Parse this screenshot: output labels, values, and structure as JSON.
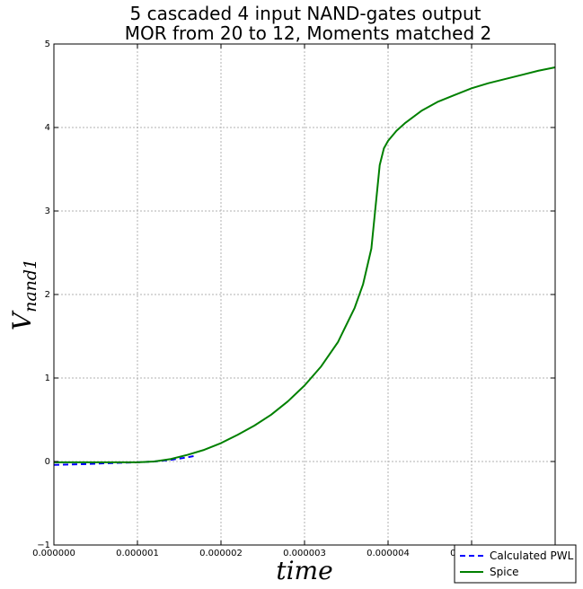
{
  "chart_data": {
    "type": "line",
    "title_lines": [
      "5 cascaded 4 input NAND-gates     output",
      "MOR from 20 to 12, Moments matched 2"
    ],
    "xlabel": "time",
    "ylabel_main": "V",
    "ylabel_sub": "nand1",
    "xlim": [
      0,
      6e-06
    ],
    "ylim": [
      -1,
      5
    ],
    "x_ticks": [
      0,
      1e-06,
      2e-06,
      3e-06,
      4e-06,
      5e-06
    ],
    "x_tick_labels": [
      "0.000000",
      "0.000001",
      "0.000002",
      "0.000003",
      "0.000004",
      "0.000005"
    ],
    "y_ticks": [
      -1,
      0,
      1,
      2,
      3,
      4,
      5
    ],
    "y_tick_labels": [
      "−1",
      "0",
      "1",
      "2",
      "3",
      "4",
      "5"
    ],
    "grid": true,
    "legend_position": "bottom-right",
    "series": [
      {
        "name": "Calculated PWL",
        "color": "#0000ff",
        "style": "dashed",
        "x": [
          0,
          2e-07,
          4e-07,
          6e-07,
          8e-07,
          1e-06,
          1.2e-06,
          1.4e-06,
          1.6e-06,
          1.7e-06
        ],
        "y": [
          -0.04,
          -0.035,
          -0.03,
          -0.022,
          -0.015,
          -0.01,
          0.0,
          0.02,
          0.05,
          0.07
        ]
      },
      {
        "name": "Spice",
        "color": "#008000",
        "style": "solid",
        "x": [
          0,
          2e-07,
          4e-07,
          6e-07,
          8e-07,
          1e-06,
          1.2e-06,
          1.4e-06,
          1.6e-06,
          1.8e-06,
          2e-06,
          2.2e-06,
          2.4e-06,
          2.6e-06,
          2.8e-06,
          3e-06,
          3.2e-06,
          3.4e-06,
          3.6e-06,
          3.7e-06,
          3.8e-06,
          3.85e-06,
          3.9e-06,
          3.95e-06,
          4e-06,
          4.1e-06,
          4.2e-06,
          4.4e-06,
          4.6e-06,
          4.8e-06,
          5e-06,
          5.2e-06,
          5.4e-06,
          5.6e-06,
          5.8e-06,
          6e-06
        ],
        "y": [
          -0.01,
          -0.01,
          -0.01,
          -0.01,
          -0.01,
          -0.01,
          0.0,
          0.03,
          0.08,
          0.14,
          0.22,
          0.32,
          0.43,
          0.56,
          0.72,
          0.91,
          1.14,
          1.43,
          1.84,
          2.12,
          2.55,
          3.05,
          3.55,
          3.75,
          3.84,
          3.96,
          4.05,
          4.2,
          4.31,
          4.39,
          4.47,
          4.53,
          4.58,
          4.63,
          4.68,
          4.72
        ]
      }
    ]
  }
}
